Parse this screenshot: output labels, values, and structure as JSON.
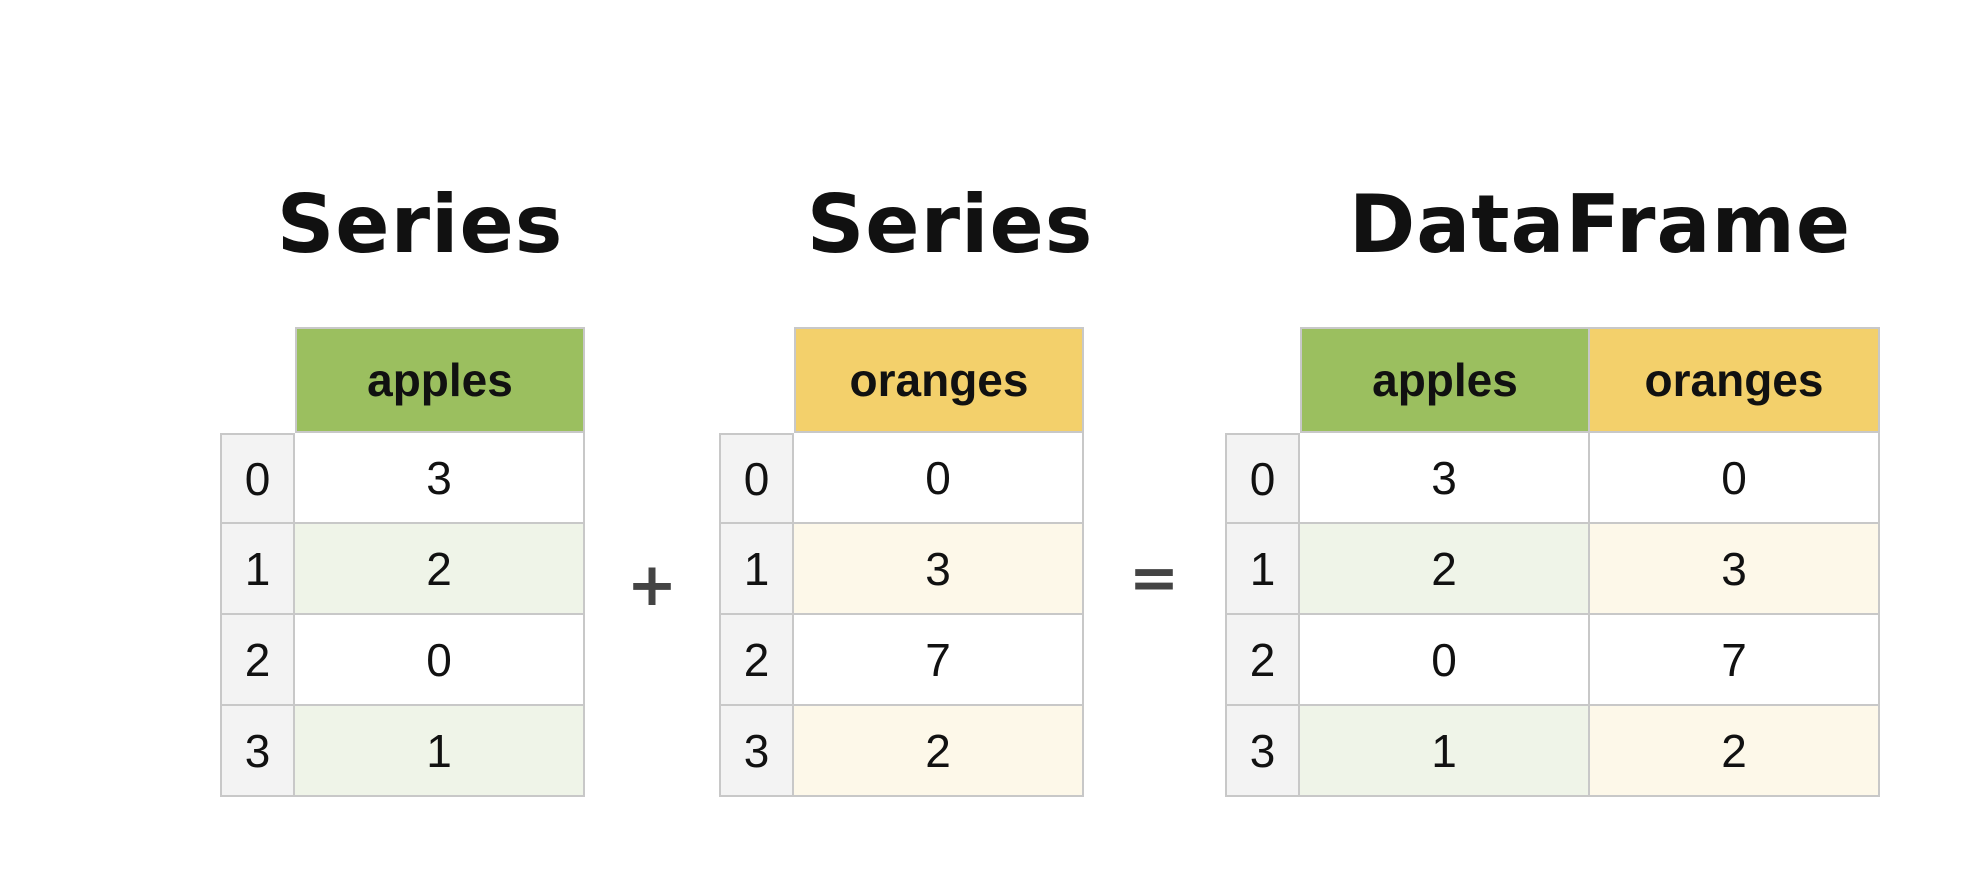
{
  "titles": {
    "left": "Series",
    "middle": "Series",
    "right": "DataFrame"
  },
  "operators": {
    "plus": "+",
    "equals": "="
  },
  "apples_series": {
    "header": "apples",
    "index": [
      "0",
      "1",
      "2",
      "3"
    ],
    "values": [
      "3",
      "2",
      "0",
      "1"
    ]
  },
  "oranges_series": {
    "header": "oranges",
    "index": [
      "0",
      "1",
      "2",
      "3"
    ],
    "values": [
      "0",
      "3",
      "7",
      "2"
    ]
  },
  "dataframe": {
    "headers": [
      "apples",
      "oranges"
    ],
    "index": [
      "0",
      "1",
      "2",
      "3"
    ],
    "rows": [
      [
        "3",
        "0"
      ],
      [
        "2",
        "3"
      ],
      [
        "0",
        "7"
      ],
      [
        "1",
        "2"
      ]
    ]
  },
  "colors": {
    "apples_header": "#9bbf5f",
    "oranges_header": "#f3d06b",
    "apples_alt_row": "#eff4e8",
    "oranges_alt_row": "#fdf8e9",
    "index_bg": "#f3f3f3"
  }
}
